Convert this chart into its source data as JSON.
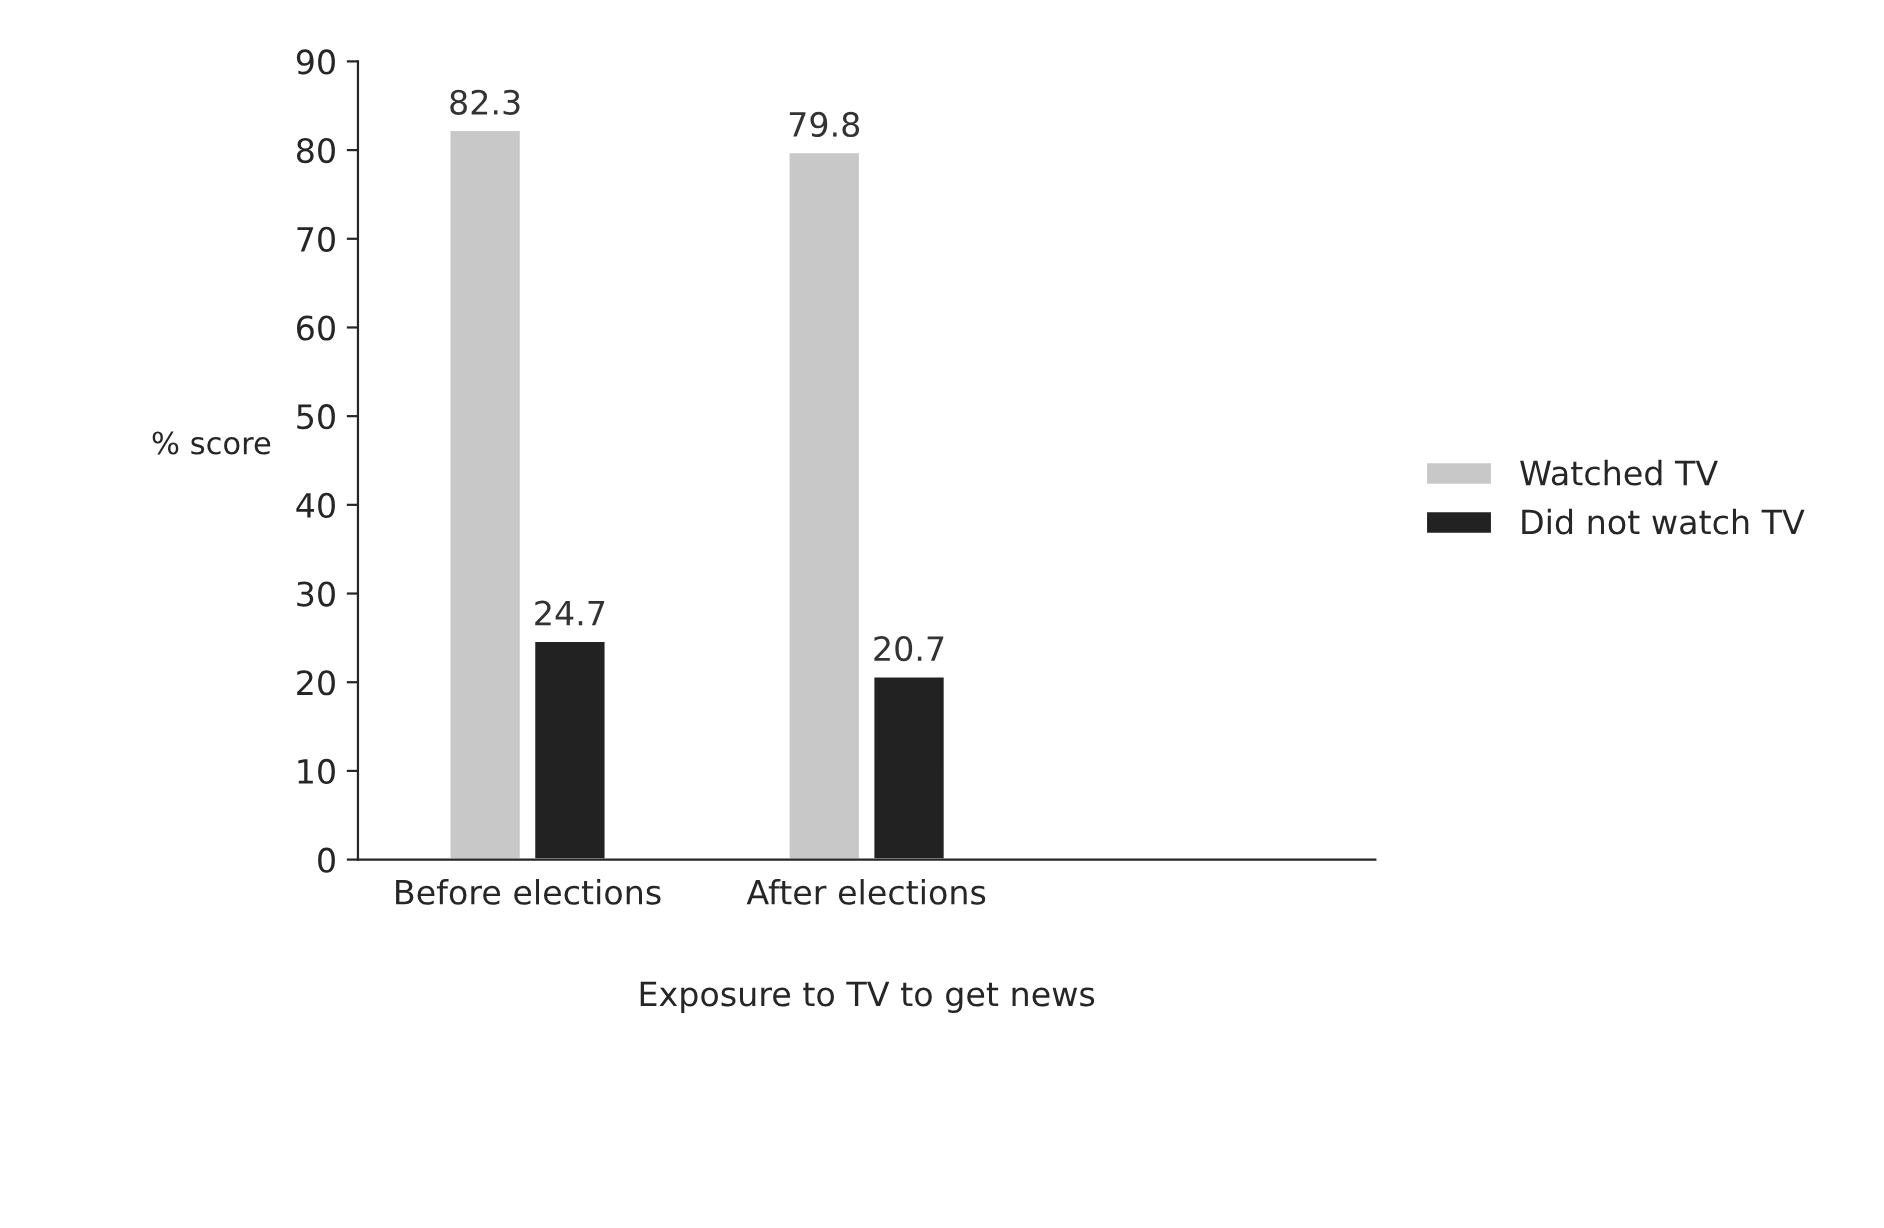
{
  "chart_data": {
    "type": "bar",
    "xlabel": "Exposure to TV to get news",
    "ylabel": "% score",
    "categories": [
      "Before elections",
      "After elections"
    ],
    "series": [
      {
        "name": "Watched TV",
        "color": "#c8c8c8",
        "values": [
          82.3,
          79.8
        ]
      },
      {
        "name": "Did not watch TV",
        "color": "#222222",
        "values": [
          24.7,
          20.7
        ]
      }
    ],
    "ylim": [
      0,
      90
    ],
    "yticks": [
      0,
      10,
      20,
      30,
      40,
      50,
      60,
      70,
      80,
      90
    ],
    "data_labels": true,
    "grid": false,
    "legend": "right"
  }
}
